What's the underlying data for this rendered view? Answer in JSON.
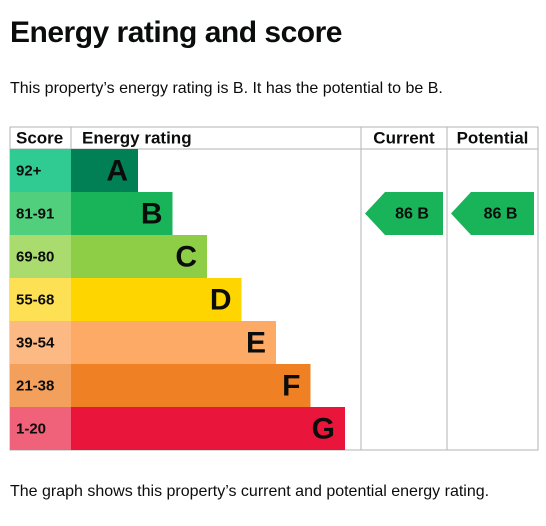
{
  "page": {
    "title": "Energy rating and score",
    "summary": "This property’s energy rating is B. It has the potential to be B.",
    "footnote": "The graph shows this property’s current and potential energy rating."
  },
  "chart_data": {
    "type": "bar",
    "title": "",
    "columns": {
      "score": "Score",
      "rating": "Energy rating",
      "current": "Current",
      "potential": "Potential"
    },
    "bands": [
      {
        "range": "92+",
        "letter": "A",
        "color": "#008054",
        "score_color": "#2fcb93"
      },
      {
        "range": "81-91",
        "letter": "B",
        "color": "#19b459",
        "score_color": "#51cf7d"
      },
      {
        "range": "69-80",
        "letter": "C",
        "color": "#8dce46",
        "score_color": "#a9db6e"
      },
      {
        "range": "55-68",
        "letter": "D",
        "color": "#ffd500",
        "score_color": "#fde053"
      },
      {
        "range": "39-54",
        "letter": "E",
        "color": "#fcaa65",
        "score_color": "#fdb983"
      },
      {
        "range": "21-38",
        "letter": "F",
        "color": "#ef8023",
        "score_color": "#f3a05c"
      },
      {
        "range": "1-20",
        "letter": "G",
        "color": "#e9153b",
        "score_color": "#f0617a"
      }
    ],
    "current": {
      "score": 86,
      "letter": "B",
      "label": "86 B",
      "color": "#19b459"
    },
    "potential": {
      "score": 86,
      "letter": "B",
      "label": "86 B",
      "color": "#19b459"
    }
  }
}
